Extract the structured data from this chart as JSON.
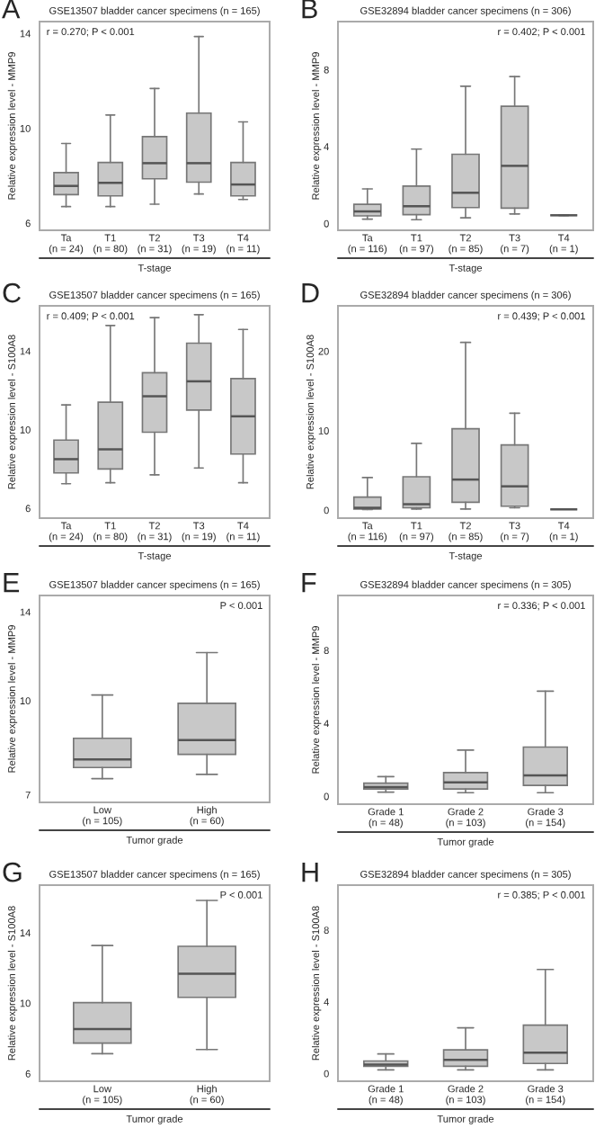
{
  "chart_data": [
    {
      "type": "box",
      "title": "GSE13507 bladder cancer specimens (n = 165)",
      "ylabel": "Relative expression level - MMP9",
      "xlabel": "T-stage",
      "categories": [
        "Ta\n(n = 24)",
        "T1\n(n = 80)",
        "T2\n(n = 31)",
        "T3\n(n = 19)",
        "T4\n(n = 11)"
      ],
      "ylim": [
        5.7,
        14.5
      ],
      "yticks": [
        6,
        10,
        14
      ],
      "annotations": [
        "A",
        "r = 0.270; P < 0.001"
      ],
      "grid": false,
      "series": [
        {
          "color": "#c8c8c8",
          "boxes": [
            {
              "low": 6.7,
              "q1": 7.2,
              "median": 7.57,
              "q3": 8.13,
              "high": 9.36
            },
            {
              "low": 6.7,
              "q1": 7.15,
              "median": 7.7,
              "q3": 8.56,
              "high": 10.56
            },
            {
              "low": 6.8,
              "q1": 7.87,
              "median": 8.53,
              "q3": 9.65,
              "high": 11.68
            },
            {
              "low": 7.23,
              "q1": 7.73,
              "median": 8.53,
              "q3": 10.64,
              "high": 13.87
            },
            {
              "low": 7.0,
              "q1": 7.15,
              "median": 7.63,
              "q3": 8.56,
              "high": 10.27
            }
          ]
        }
      ]
    },
    {
      "type": "box",
      "title": "GSE32894 bladder cancer specimens (n = 306)",
      "ylabel": "Relative expression level - MMP9",
      "xlabel": "T-stage",
      "categories": [
        "Ta\n(n = 116)",
        "T1\n(n = 97)",
        "T2\n(n = 85)",
        "T3\n(n = 7)",
        "T4\n(n = 1)"
      ],
      "ylim": [
        -0.35,
        10.5
      ],
      "yticks": [
        0,
        4,
        8
      ],
      "annotations": [
        "B",
        "r = 0.402; P < 0.001"
      ],
      "grid": false,
      "series": [
        {
          "color": "#c8c8c8",
          "boxes": [
            {
              "low": 0.23,
              "q1": 0.4,
              "median": 0.63,
              "q3": 1.0,
              "high": 1.8
            },
            {
              "low": 0.2,
              "q1": 0.46,
              "median": 0.9,
              "q3": 1.95,
              "high": 3.87
            },
            {
              "low": 0.3,
              "q1": 0.83,
              "median": 1.6,
              "q3": 3.6,
              "high": 7.14
            },
            {
              "low": 0.5,
              "q1": 0.8,
              "median": 3.0,
              "q3": 6.1,
              "high": 7.64
            },
            {
              "low": 0.43,
              "q1": 0.43,
              "median": 0.43,
              "q3": 0.43,
              "high": 0.43
            }
          ]
        }
      ]
    },
    {
      "type": "box",
      "title": "GSE13507 bladder cancer specimens (n = 165)",
      "ylabel": "Relative expression level - S100A8",
      "xlabel": "T-stage",
      "categories": [
        "Ta\n(n = 24)",
        "T1\n(n = 80)",
        "T2\n(n = 31)",
        "T3\n(n = 19)",
        "T4\n(n = 11)"
      ],
      "ylim": [
        5.5,
        16.3
      ],
      "yticks": [
        6,
        10,
        14
      ],
      "annotations": [
        "C",
        "r = 0.409; P < 0.001"
      ],
      "grid": false,
      "series": [
        {
          "color": "#c8c8c8",
          "boxes": [
            {
              "low": 7.25,
              "q1": 7.8,
              "median": 8.5,
              "q3": 9.47,
              "high": 11.26
            },
            {
              "low": 7.3,
              "q1": 8.0,
              "median": 9.0,
              "q3": 11.4,
              "high": 15.3
            },
            {
              "low": 7.7,
              "q1": 9.87,
              "median": 11.7,
              "q3": 12.9,
              "high": 15.7
            },
            {
              "low": 8.05,
              "q1": 11.0,
              "median": 12.46,
              "q3": 14.4,
              "high": 15.85
            },
            {
              "low": 7.3,
              "q1": 8.76,
              "median": 10.68,
              "q3": 12.6,
              "high": 15.1
            }
          ]
        }
      ]
    },
    {
      "type": "box",
      "title": "GSE32894 bladder cancer specimens (n = 306)",
      "ylabel": "Relative expression level - S100A8",
      "xlabel": "T-stage",
      "categories": [
        "Ta\n(n = 116)",
        "T1\n(n = 97)",
        "T2\n(n = 85)",
        "T3\n(n = 7)",
        "T4\n(n = 1)"
      ],
      "ylim": [
        -1,
        25.7
      ],
      "yticks": [
        0,
        10,
        20
      ],
      "annotations": [
        "D",
        "r = 0.439; P < 0.001"
      ],
      "grid": false,
      "series": [
        {
          "color": "#c8c8c8",
          "boxes": [
            {
              "low": 0.08,
              "q1": 0.15,
              "median": 0.3,
              "q3": 1.65,
              "high": 4.1
            },
            {
              "low": 0.15,
              "q1": 0.3,
              "median": 0.75,
              "q3": 4.2,
              "high": 8.4
            },
            {
              "low": 0.15,
              "q1": 1.0,
              "median": 3.85,
              "q3": 10.25,
              "high": 21.1
            },
            {
              "low": 0.3,
              "q1": 0.5,
              "median": 3.0,
              "q3": 8.2,
              "high": 12.2
            },
            {
              "low": 0.1,
              "q1": 0.1,
              "median": 0.1,
              "q3": 0.1,
              "high": 0.1
            }
          ]
        }
      ]
    },
    {
      "type": "box",
      "title": "GSE13507 bladder cancer specimens (n = 165)",
      "ylabel": "Relative expression level - MMP9",
      "xlabel": "Tumor grade",
      "categories": [
        "Low\n(n = 105)",
        "High\n(n = 60)"
      ],
      "log": true,
      "ylim": [
        6.8,
        14.9
      ],
      "yticks": [
        7,
        10,
        14
      ],
      "annotations": [
        "E",
        "P < 0.001"
      ],
      "grid": false,
      "series": [
        {
          "color": "#c8c8c8",
          "boxes": [
            {
              "low": 7.44,
              "q1": 7.76,
              "median": 8.0,
              "q3": 8.67,
              "high": 10.22
            },
            {
              "low": 7.56,
              "q1": 8.16,
              "median": 8.61,
              "q3": 9.9,
              "high": 12.0
            }
          ]
        }
      ]
    },
    {
      "type": "box",
      "title": "GSE32894 bladder cancer specimens (n = 305)",
      "ylabel": "Relative expression level - MMP9",
      "xlabel": "Tumor grade",
      "categories": [
        "Grade 1\n(n = 48)",
        "Grade 2\n(n = 103)",
        "Grade 3\n(n = 154)"
      ],
      "ylim": [
        -0.43,
        11
      ],
      "yticks": [
        0,
        4,
        8
      ],
      "annotations": [
        "F",
        "r = 0.336; P < 0.001"
      ],
      "grid": false,
      "series": [
        {
          "color": "#c8c8c8",
          "boxes": [
            {
              "low": 0.23,
              "q1": 0.4,
              "median": 0.5,
              "q3": 0.72,
              "high": 1.08
            },
            {
              "low": 0.2,
              "q1": 0.4,
              "median": 0.76,
              "q3": 1.3,
              "high": 2.53
            },
            {
              "low": 0.2,
              "q1": 0.6,
              "median": 1.15,
              "q3": 2.7,
              "high": 5.76
            }
          ]
        }
      ]
    },
    {
      "type": "box",
      "title": "GSE13507 bladder cancer specimens (n = 165)",
      "ylabel": "Relative expression level - S100A8",
      "xlabel": "Tumor grade",
      "categories": [
        "Low\n(n = 105)",
        "High\n(n = 60)"
      ],
      "ylim": [
        5.57,
        16.7
      ],
      "yticks": [
        6,
        10,
        14
      ],
      "annotations": [
        "G",
        "P < 0.001"
      ],
      "grid": false,
      "series": [
        {
          "color": "#c8c8c8",
          "boxes": [
            {
              "low": 7.13,
              "q1": 7.73,
              "median": 8.53,
              "q3": 10.03,
              "high": 13.27
            },
            {
              "low": 7.37,
              "q1": 10.33,
              "median": 11.67,
              "q3": 13.23,
              "high": 15.83
            }
          ]
        }
      ]
    },
    {
      "type": "box",
      "title": "GSE32894 bladder cancer specimens (n = 305)",
      "ylabel": "Relative expression level - S100A8",
      "xlabel": "Tumor grade",
      "categories": [
        "Grade 1\n(n = 48)",
        "Grade 2\n(n = 103)",
        "Grade 3\n(n = 154)"
      ],
      "ylim": [
        -0.43,
        10.5
      ],
      "yticks": [
        0,
        4,
        8
      ],
      "annotations": [
        "H",
        "r = 0.385; P < 0.001"
      ],
      "grid": false,
      "series": [
        {
          "color": "#c8c8c8",
          "boxes": [
            {
              "low": 0.2,
              "q1": 0.4,
              "median": 0.5,
              "q3": 0.7,
              "high": 1.09
            },
            {
              "low": 0.2,
              "q1": 0.4,
              "median": 0.76,
              "q3": 1.32,
              "high": 2.55
            },
            {
              "low": 0.2,
              "q1": 0.56,
              "median": 1.16,
              "q3": 2.7,
              "high": 5.8
            }
          ]
        }
      ]
    }
  ]
}
